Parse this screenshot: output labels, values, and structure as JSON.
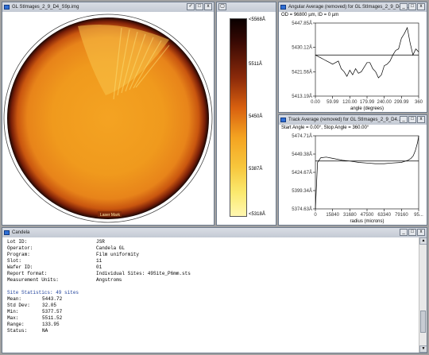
{
  "wafer_window": {
    "title": "GL StImages_2_9_D4_S9p.img",
    "controls": [
      "✓",
      "□",
      "x"
    ],
    "footer_label": "Laser Mark"
  },
  "colorbar_window": {
    "controls": [
      "▢"
    ],
    "labels": [
      "<5568Å",
      "5511Å",
      "5450Å",
      "5387Å",
      "<5318Å"
    ]
  },
  "angular_window": {
    "title": "Angular Average (removed) for GL StImages_2_9_D4_...",
    "controls": [
      "_",
      "□",
      "x"
    ],
    "header": "OD = 96800 µm, ID = 0 µm"
  },
  "track_window": {
    "title": "Track Average (removed) for GL StImages_2_9_D4...",
    "controls": [
      "_",
      "□",
      "x"
    ],
    "header": "Start Angle = 0.00°, Stop Angle = 360.00°"
  },
  "report_window": {
    "title": "Candela",
    "controls": [
      "_",
      "□",
      "x"
    ],
    "rows": [
      {
        "label": "Lot ID:",
        "value": "JSR"
      },
      {
        "label": "Operator:",
        "value": "Candela GL"
      },
      {
        "label": "Program:",
        "value": "Film uniformity"
      },
      {
        "label": "Slot:",
        "value": "11"
      },
      {
        "label": "Wafer ID:",
        "value": "01"
      },
      {
        "label": "Report format:",
        "value": "Individual Sites: 49Site_P6mm.sts"
      },
      {
        "label": "Measurement Units:",
        "value": "Angstroms"
      }
    ],
    "stats_title": "Site Statistics: 49 sites",
    "stats": [
      {
        "label": "Mean:",
        "value": "5443.72"
      },
      {
        "label": "Std Dev:",
        "value": "32.05"
      },
      {
        "label": "Min:",
        "value": "5377.57"
      },
      {
        "label": "Max:",
        "value": "5511.52"
      },
      {
        "label": "Range:",
        "value": "133.95"
      },
      {
        "label": "Status:",
        "value": "NA"
      }
    ],
    "scroll_up": "▲",
    "scroll_down": "▼"
  },
  "chart_data": [
    {
      "type": "line",
      "title": "",
      "xlabel": "angle (degrees)",
      "ylabel": "",
      "x_ticks": [
        "0.00",
        "59.99",
        "120.00",
        "179.99",
        "240.00",
        "299.99",
        "360"
      ],
      "y_ticks": [
        "5447.85Å",
        "5430.12Å",
        "5421.56Å",
        "5413.19Å"
      ],
      "xlim": [
        0,
        360
      ],
      "ylim": [
        5410,
        5458
      ],
      "reference_line": 5437,
      "x": [
        0,
        10,
        20,
        30,
        40,
        50,
        60,
        70,
        80,
        90,
        100,
        110,
        120,
        130,
        140,
        150,
        160,
        170,
        180,
        190,
        200,
        210,
        220,
        230,
        240,
        250,
        260,
        270,
        280,
        290,
        300,
        310,
        320,
        330,
        340,
        350,
        360
      ],
      "y": [
        5437,
        5436,
        5435,
        5434,
        5433,
        5432,
        5431,
        5432,
        5433,
        5428,
        5426,
        5423,
        5427,
        5424,
        5428,
        5425,
        5426,
        5429,
        5432,
        5432,
        5428,
        5426,
        5422,
        5424,
        5430,
        5431,
        5433,
        5437,
        5440,
        5441,
        5448,
        5451,
        5455,
        5445,
        5437,
        5441,
        5439
      ]
    },
    {
      "type": "line",
      "title": "",
      "xlabel": "radius (microns)",
      "ylabel": "",
      "x_ticks": [
        "0",
        "15840",
        "31680",
        "47500",
        "63340",
        "79160",
        "95..."
      ],
      "y_ticks": [
        "5474.71Å",
        "5449.38Å",
        "5424.67Å",
        "5399.34Å",
        "5374.63Å"
      ],
      "xlim": [
        0,
        95000
      ],
      "ylim": [
        5370,
        5480
      ],
      "reference_line": 5442,
      "x": [
        0,
        2000,
        5000,
        10000,
        15840,
        25000,
        31680,
        40000,
        47500,
        55000,
        63340,
        70000,
        79160,
        85000,
        88000,
        90000,
        92000,
        94000,
        95000
      ],
      "y": [
        5350,
        5440,
        5447,
        5448,
        5446,
        5443,
        5442,
        5440,
        5439,
        5438,
        5438,
        5439,
        5440,
        5443,
        5446,
        5450,
        5458,
        5470,
        5480
      ]
    }
  ]
}
